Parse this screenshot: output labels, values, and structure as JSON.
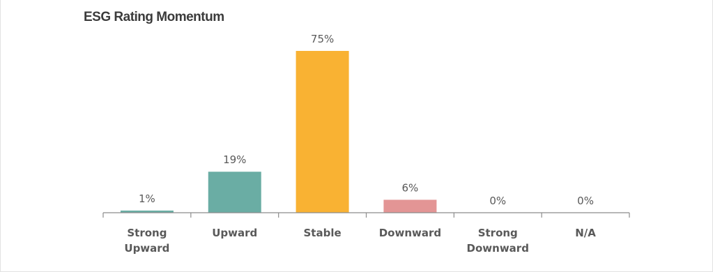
{
  "chart_data": {
    "type": "bar",
    "title": "ESG Rating Momentum",
    "categories": [
      "Strong Upward",
      "Upward",
      "Stable",
      "Downward",
      "Strong Downward",
      "N/A"
    ],
    "category_lines": [
      [
        "Strong",
        "Upward"
      ],
      [
        "Upward"
      ],
      [
        "Stable"
      ],
      [
        "Downward"
      ],
      [
        "Strong",
        "Downward"
      ],
      [
        "N/A"
      ]
    ],
    "values": [
      1,
      19,
      75,
      6,
      0,
      0
    ],
    "value_labels": [
      "1%",
      "19%",
      "75%",
      "6%",
      "0%",
      "0%"
    ],
    "colors": [
      "#6aada4",
      "#6aada4",
      "#f9b233",
      "#e39595",
      "#6aada4",
      "#6aada4"
    ],
    "ylim": [
      0,
      75
    ],
    "grid": false,
    "legend": "none",
    "xlabel": "",
    "ylabel": ""
  }
}
